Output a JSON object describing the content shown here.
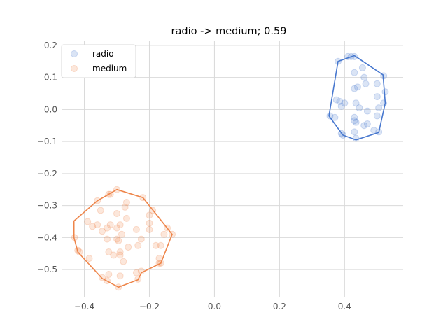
{
  "chart_data": {
    "type": "scatter",
    "title": "radio -> medium; 0.59",
    "xlabel": "",
    "ylabel": "",
    "xlim": [
      -0.47,
      0.58
    ],
    "ylim": [
      -0.585,
      0.215
    ],
    "x_ticks": [
      -0.4,
      -0.2,
      0.0,
      0.2,
      0.4
    ],
    "x_tick_labels": [
      "−0.4",
      "−0.2",
      "0.0",
      "0.2",
      "0.4"
    ],
    "y_ticks": [
      0.2,
      0.1,
      0.0,
      -0.1,
      -0.2,
      -0.3,
      -0.4,
      -0.5
    ],
    "y_tick_labels": [
      "0.2",
      "0.1",
      "0.0",
      "−0.1",
      "−0.2",
      "−0.3",
      "−0.4",
      "−0.5"
    ],
    "grid": true,
    "legend_position": "top-left",
    "series": [
      {
        "name": "radio",
        "color": "#4878cf",
        "points": [
          [
            0.41,
            0.165
          ],
          [
            0.42,
            0.165
          ],
          [
            0.43,
            0.165
          ],
          [
            0.38,
            0.15
          ],
          [
            0.455,
            0.13
          ],
          [
            0.43,
            0.115
          ],
          [
            0.46,
            0.1
          ],
          [
            0.52,
            0.105
          ],
          [
            0.44,
            0.07
          ],
          [
            0.43,
            0.065
          ],
          [
            0.465,
            0.08
          ],
          [
            0.5,
            0.08
          ],
          [
            0.525,
            0.055
          ],
          [
            0.5,
            0.04
          ],
          [
            0.375,
            0.03
          ],
          [
            0.385,
            0.025
          ],
          [
            0.4,
            0.02
          ],
          [
            0.435,
            0.02
          ],
          [
            0.39,
            0.01
          ],
          [
            0.445,
            0.005
          ],
          [
            0.52,
            0.02
          ],
          [
            0.505,
            0.005
          ],
          [
            0.47,
            -0.005
          ],
          [
            0.355,
            -0.02
          ],
          [
            0.37,
            -0.025
          ],
          [
            0.43,
            -0.025
          ],
          [
            0.5,
            -0.02
          ],
          [
            0.43,
            -0.035
          ],
          [
            0.435,
            -0.04
          ],
          [
            0.46,
            -0.05
          ],
          [
            0.47,
            -0.045
          ],
          [
            0.39,
            -0.075
          ],
          [
            0.395,
            -0.08
          ],
          [
            0.43,
            -0.07
          ],
          [
            0.49,
            -0.065
          ],
          [
            0.505,
            -0.07
          ],
          [
            0.435,
            -0.09
          ]
        ],
        "hull": [
          [
            0.43,
            0.168
          ],
          [
            0.518,
            0.108
          ],
          [
            0.525,
            0.02
          ],
          [
            0.505,
            -0.072
          ],
          [
            0.435,
            -0.095
          ],
          [
            0.395,
            -0.08
          ],
          [
            0.352,
            -0.02
          ],
          [
            0.38,
            0.15
          ]
        ]
      },
      {
        "name": "medium",
        "color": "#ee854a",
        "points": [
          [
            -0.3,
            -0.25
          ],
          [
            -0.32,
            -0.265
          ],
          [
            -0.325,
            -0.265
          ],
          [
            -0.22,
            -0.275
          ],
          [
            -0.36,
            -0.285
          ],
          [
            -0.27,
            -0.29
          ],
          [
            -0.275,
            -0.305
          ],
          [
            -0.35,
            -0.315
          ],
          [
            -0.19,
            -0.315
          ],
          [
            -0.3,
            -0.325
          ],
          [
            -0.2,
            -0.33
          ],
          [
            -0.27,
            -0.34
          ],
          [
            -0.39,
            -0.35
          ],
          [
            -0.36,
            -0.36
          ],
          [
            -0.32,
            -0.36
          ],
          [
            -0.29,
            -0.36
          ],
          [
            -0.2,
            -0.355
          ],
          [
            -0.375,
            -0.365
          ],
          [
            -0.33,
            -0.37
          ],
          [
            -0.3,
            -0.37
          ],
          [
            -0.24,
            -0.375
          ],
          [
            -0.2,
            -0.375
          ],
          [
            -0.145,
            -0.37
          ],
          [
            -0.345,
            -0.38
          ],
          [
            -0.285,
            -0.39
          ],
          [
            -0.155,
            -0.39
          ],
          [
            -0.13,
            -0.39
          ],
          [
            -0.43,
            -0.4
          ],
          [
            -0.33,
            -0.405
          ],
          [
            -0.3,
            -0.405
          ],
          [
            -0.295,
            -0.41
          ],
          [
            -0.225,
            -0.405
          ],
          [
            -0.165,
            -0.425
          ],
          [
            -0.18,
            -0.425
          ],
          [
            -0.235,
            -0.425
          ],
          [
            -0.265,
            -0.43
          ],
          [
            -0.42,
            -0.44
          ],
          [
            -0.415,
            -0.445
          ],
          [
            -0.325,
            -0.445
          ],
          [
            -0.29,
            -0.445
          ],
          [
            -0.31,
            -0.455
          ],
          [
            -0.29,
            -0.455
          ],
          [
            -0.28,
            -0.475
          ],
          [
            -0.17,
            -0.465
          ],
          [
            -0.17,
            -0.48
          ],
          [
            -0.165,
            -0.48
          ],
          [
            -0.385,
            -0.465
          ],
          [
            -0.24,
            -0.51
          ],
          [
            -0.225,
            -0.505
          ],
          [
            -0.325,
            -0.515
          ],
          [
            -0.29,
            -0.52
          ],
          [
            -0.345,
            -0.525
          ],
          [
            -0.33,
            -0.535
          ],
          [
            -0.235,
            -0.53
          ],
          [
            -0.295,
            -0.555
          ]
        ],
        "hull": [
          [
            -0.3,
            -0.25
          ],
          [
            -0.22,
            -0.275
          ],
          [
            -0.13,
            -0.39
          ],
          [
            -0.165,
            -0.48
          ],
          [
            -0.225,
            -0.51
          ],
          [
            -0.235,
            -0.532
          ],
          [
            -0.295,
            -0.555
          ],
          [
            -0.345,
            -0.528
          ],
          [
            -0.42,
            -0.445
          ],
          [
            -0.432,
            -0.4
          ],
          [
            -0.432,
            -0.348
          ],
          [
            -0.36,
            -0.285
          ]
        ]
      }
    ]
  }
}
